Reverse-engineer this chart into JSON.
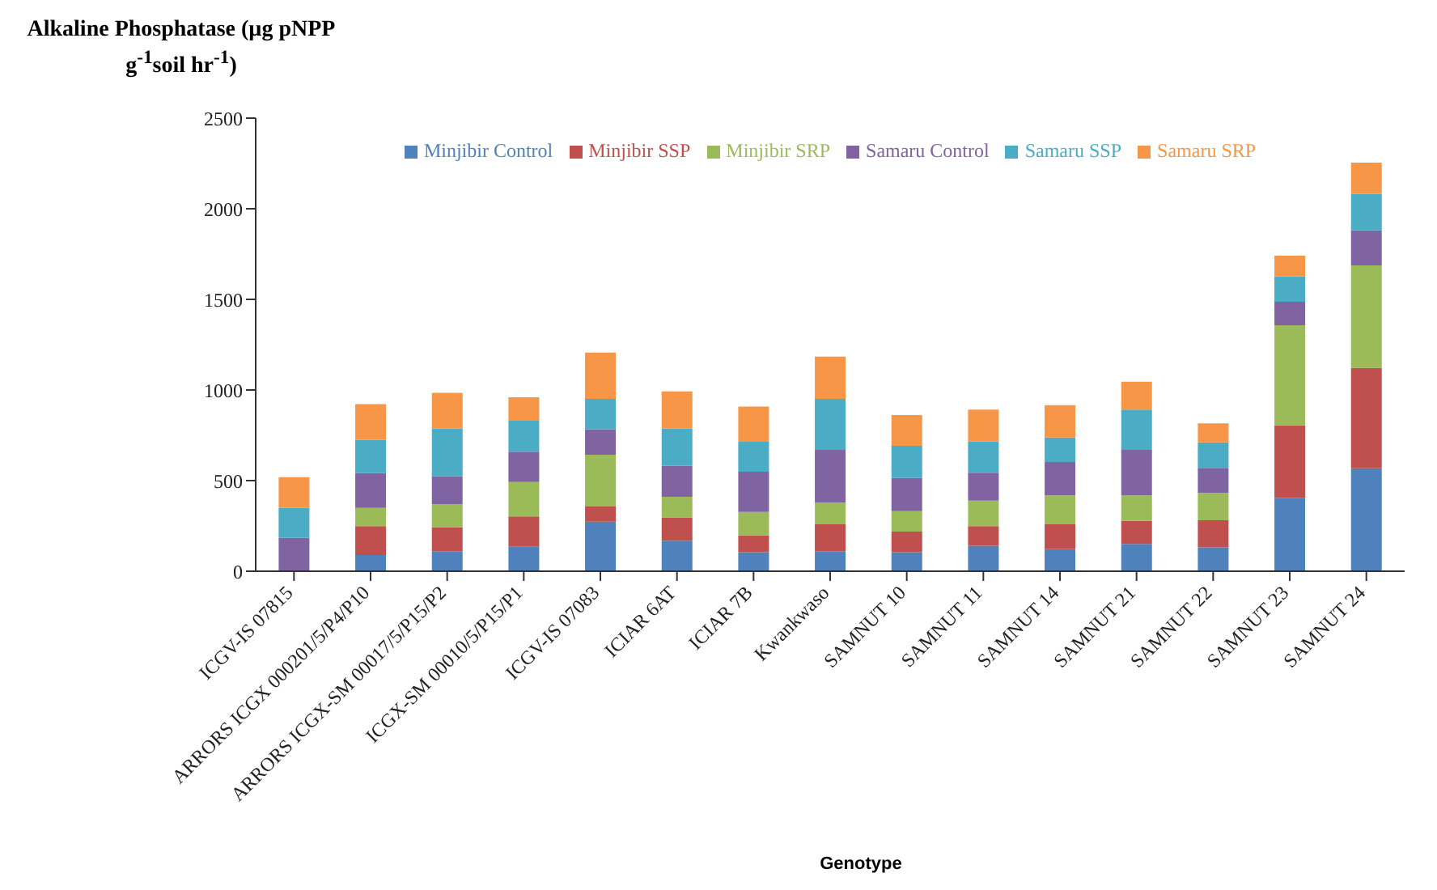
{
  "chart_data": {
    "type": "bar",
    "ylabel": "Alkaline Phosphatase (µg pNPP g$^{-1}$soil hr$^{-1}$)",
    "xlabel": "Genotype",
    "categories": [
      "ICGV-IS 07815",
      "ARRORS ICGX 000201/5/P4/P10",
      "ARRORS ICGX-SM 00017/5/P15/P2",
      "ICGX-SM 00010/5/P15/P1",
      "ICGV-IS 07083",
      "ICIAR 6AT",
      "ICIAR 7B",
      "Kwankwaso",
      "SAMNUT 10",
      "SAMNUT 11",
      "SAMNUT 14",
      "SAMNUT 21",
      "SAMNUT 22",
      "SAMNUT 23",
      "SAMNUT 24"
    ],
    "stacked": true,
    "ylim": [
      0,
      2500
    ],
    "yticks": [
      0,
      500,
      1000,
      1500,
      2000,
      2500
    ],
    "grid": false,
    "legend": "top",
    "series": [
      {
        "name": "Minjibir Control",
        "color": "#4f81bd",
        "values": [
          0,
          89,
          111,
          135,
          273,
          168,
          105,
          111,
          105,
          141,
          122,
          151,
          132,
          405,
          568
        ]
      },
      {
        "name": "Minjibir SSP",
        "color": "#c0504d",
        "values": [
          0,
          160,
          132,
          168,
          84,
          129,
          92,
          148,
          114,
          108,
          137,
          127,
          149,
          400,
          554
        ]
      },
      {
        "name": "Minjibir SRP",
        "color": "#9bbb59",
        "values": [
          0,
          100,
          127,
          189,
          286,
          114,
          130,
          119,
          113,
          140,
          160,
          141,
          151,
          552,
          565
        ]
      },
      {
        "name": "Samaru Control",
        "color": "#8064a2",
        "values": [
          184,
          192,
          154,
          168,
          141,
          170,
          222,
          292,
          182,
          154,
          184,
          251,
          138,
          130,
          194
        ]
      },
      {
        "name": "Samaru SSP",
        "color": "#4bacc6",
        "values": [
          165,
          183,
          263,
          170,
          167,
          206,
          165,
          281,
          178,
          173,
          135,
          222,
          141,
          140,
          200
        ]
      },
      {
        "name": "Samaru SRP",
        "color": "#f79646",
        "values": [
          170,
          198,
          197,
          130,
          255,
          205,
          194,
          233,
          170,
          176,
          178,
          154,
          105,
          114,
          173
        ]
      }
    ]
  }
}
